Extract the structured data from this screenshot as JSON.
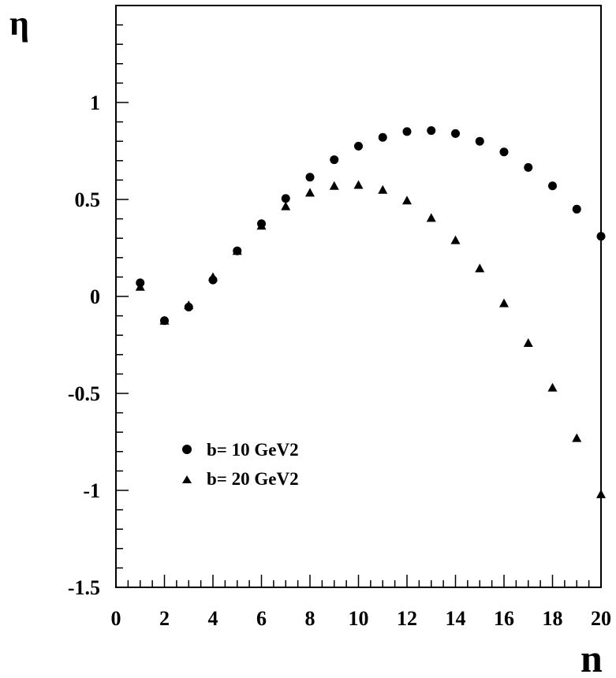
{
  "chart_data": {
    "type": "scatter",
    "xlabel": "n",
    "ylabel": "η",
    "xlim": [
      0,
      20
    ],
    "ylim": [
      -1.5,
      1.5
    ],
    "x_ticks": [
      0,
      2,
      4,
      6,
      8,
      10,
      12,
      14,
      16,
      18,
      20
    ],
    "x_tick_labels": [
      "0",
      "2",
      "4",
      "6",
      "8",
      "10",
      "12",
      "14",
      "16",
      "18",
      "20"
    ],
    "y_ticks": [
      -1.5,
      -1,
      -0.5,
      0,
      0.5,
      1
    ],
    "y_tick_labels": [
      "-1.5",
      "-1",
      "-0.5",
      "0",
      "0.5",
      "1"
    ],
    "grid": false,
    "legend_position": "lower-left",
    "series": [
      {
        "name": "b= 10 GeV2",
        "marker": "circle",
        "color": "#000000",
        "x": [
          1,
          2,
          3,
          4,
          5,
          6,
          7,
          8,
          9,
          10,
          11,
          12,
          13,
          14,
          15,
          16,
          17,
          18,
          19,
          20
        ],
        "y": [
          0.07,
          -0.125,
          -0.055,
          0.085,
          0.235,
          0.375,
          0.505,
          0.615,
          0.705,
          0.775,
          0.82,
          0.85,
          0.855,
          0.84,
          0.8,
          0.745,
          0.665,
          0.57,
          0.45,
          0.31
        ]
      },
      {
        "name": "b= 20 GeV2",
        "marker": "triangle",
        "color": "#000000",
        "x": [
          1,
          2,
          3,
          4,
          5,
          6,
          7,
          8,
          9,
          10,
          11,
          12,
          13,
          14,
          15,
          16,
          17,
          18,
          19,
          20
        ],
        "y": [
          0.05,
          -0.125,
          -0.045,
          0.1,
          0.235,
          0.365,
          0.465,
          0.535,
          0.57,
          0.575,
          0.55,
          0.495,
          0.405,
          0.29,
          0.145,
          -0.035,
          -0.24,
          -0.47,
          -0.73,
          -1.02
        ]
      }
    ]
  }
}
